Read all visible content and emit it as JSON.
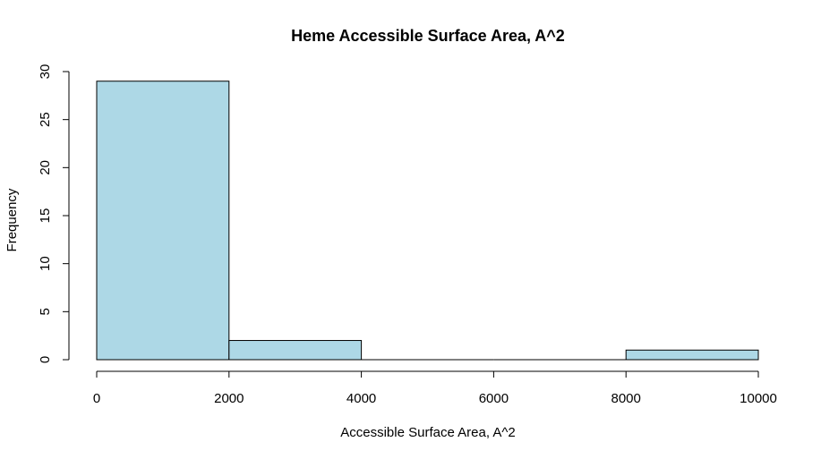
{
  "chart_data": {
    "type": "bar",
    "title": "Heme Accessible Surface Area, A^2",
    "xlabel": "Accessible Surface Area, A^2",
    "ylabel": "Frequency",
    "bins": [
      {
        "start": 0,
        "end": 2000,
        "count": 29
      },
      {
        "start": 2000,
        "end": 4000,
        "count": 2
      },
      {
        "start": 4000,
        "end": 6000,
        "count": 0
      },
      {
        "start": 6000,
        "end": 8000,
        "count": 0
      },
      {
        "start": 8000,
        "end": 10000,
        "count": 1
      }
    ],
    "x_ticks": [
      "0",
      "2000",
      "4000",
      "6000",
      "8000",
      "10000"
    ],
    "y_ticks": [
      "0",
      "5",
      "10",
      "15",
      "20",
      "25",
      "30"
    ],
    "xlim": [
      0,
      10000
    ],
    "ylim": [
      0,
      30
    ],
    "bar_color": "#add8e6",
    "grid": false
  }
}
